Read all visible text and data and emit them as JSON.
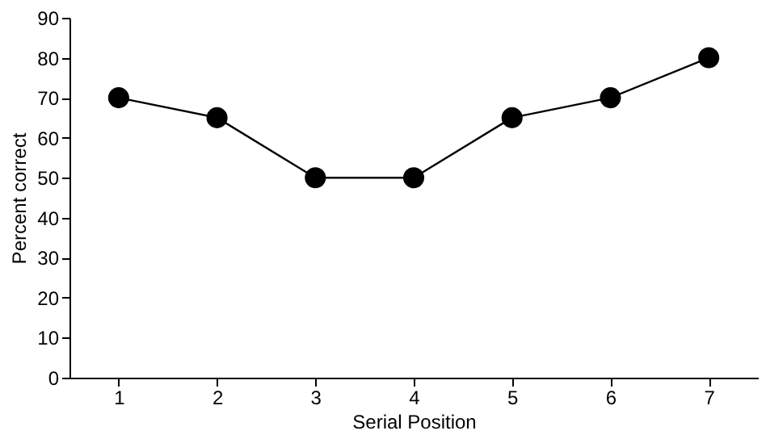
{
  "chart_data": {
    "type": "line",
    "xlabel": "Serial Position",
    "ylabel": "Percent correct",
    "categories": [
      "1",
      "2",
      "3",
      "4",
      "5",
      "6",
      "7"
    ],
    "series": [
      {
        "color": "#000000",
        "values": [
          70,
          65,
          50,
          50,
          65,
          70,
          80
        ]
      }
    ],
    "ylim": [
      0,
      90
    ],
    "yticks": [
      0,
      10,
      20,
      30,
      40,
      50,
      60,
      70,
      80,
      90
    ],
    "grid": false,
    "legend": false,
    "marker": "circle",
    "line_style": "solid"
  }
}
